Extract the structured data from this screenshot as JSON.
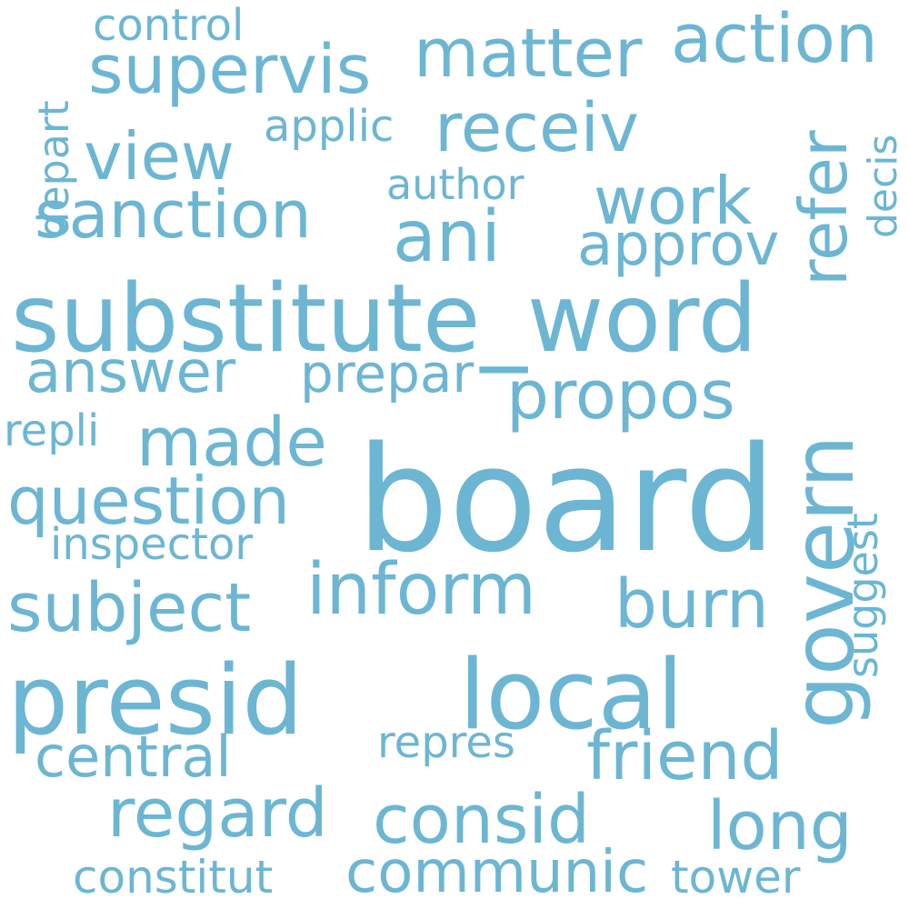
{
  "colors": {
    "word": "#6cb6d3",
    "background": "#ffffff"
  },
  "words": {
    "board": "board",
    "substitute_word": "substitute_word",
    "presid": "presid",
    "local": "local",
    "govern": "govern",
    "supervis": "supervis",
    "matter": "matter",
    "action": "action",
    "receiv": "receiv",
    "refer": "refer",
    "sanction": "sanction",
    "view": "view",
    "work": "work",
    "ani": "ani",
    "approv": "approv",
    "control": "control",
    "depart": "depart",
    "applic": "applic",
    "author": "author",
    "decis": "decis",
    "answer": "answer",
    "prepar": "prepar",
    "propos": "propos",
    "made": "made",
    "repli": "repli",
    "question": "question",
    "inspector": "inspector",
    "inform": "inform",
    "subject": "subject",
    "burn": "burn",
    "suggest": "suggest",
    "friend": "friend",
    "repres": "repres",
    "central": "central",
    "regard": "regard",
    "consid": "consid",
    "long": "long",
    "communic": "communic",
    "constitut": "constitut",
    "tower": "tower"
  }
}
